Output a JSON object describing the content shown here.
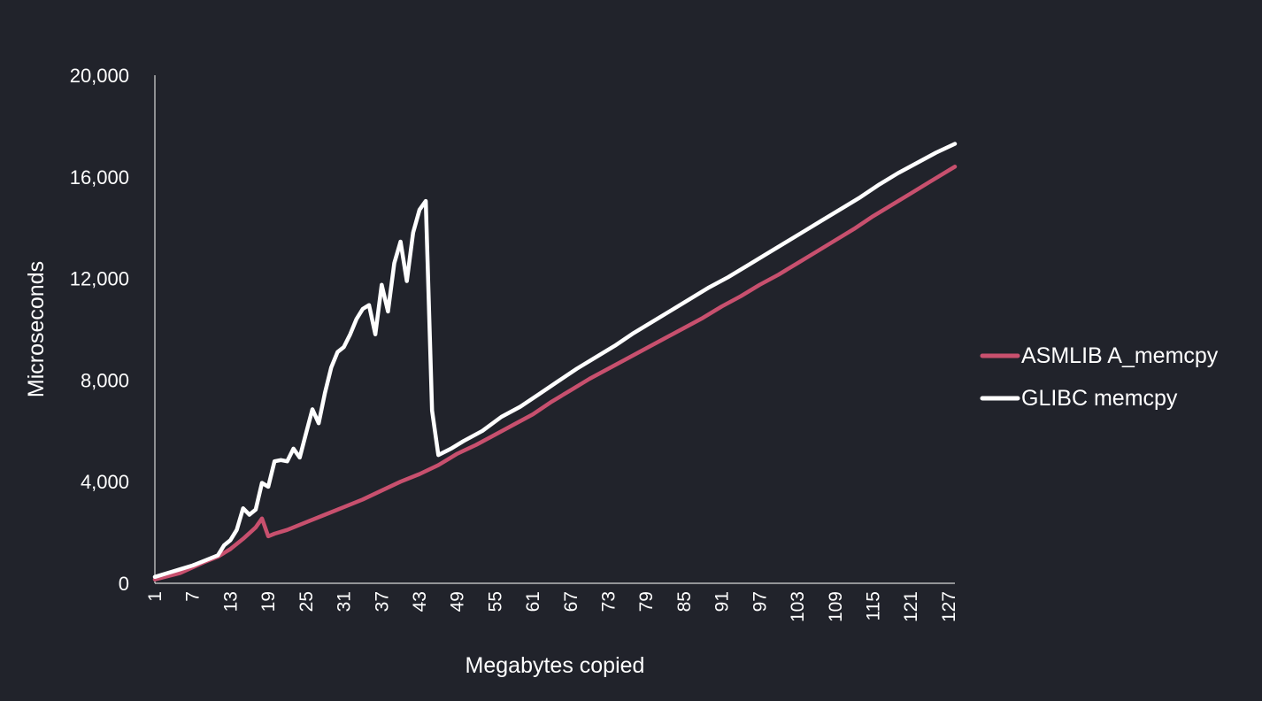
{
  "chart_data": {
    "type": "line",
    "xlabel": "Megabytes copied",
    "ylabel": "Microseconds",
    "xlim": [
      1,
      128
    ],
    "ylim": [
      0,
      20000
    ],
    "y_ticks": [
      0,
      4000,
      8000,
      12000,
      16000,
      20000
    ],
    "y_tick_labels": [
      "0",
      "4,000",
      "8,000",
      "12,000",
      "16,000",
      "20,000"
    ],
    "x_tick_values": [
      1,
      7,
      13,
      19,
      25,
      31,
      37,
      43,
      49,
      55,
      61,
      67,
      73,
      79,
      85,
      91,
      97,
      103,
      109,
      115,
      121,
      127
    ],
    "x_tick_labels": [
      "1",
      "7",
      "13",
      "19",
      "25",
      "31",
      "37",
      "43",
      "49",
      "55",
      "61",
      "67",
      "73",
      "79",
      "85",
      "91",
      "97",
      "103",
      "109",
      "115",
      "121",
      "127"
    ],
    "grid": false,
    "legend_position": "right",
    "background": "#21232b",
    "series": [
      {
        "name": "ASMLIB A_memcpy",
        "color": "#c8506e",
        "points": [
          [
            1,
            150
          ],
          [
            5,
            400
          ],
          [
            9,
            850
          ],
          [
            11,
            1050
          ],
          [
            13,
            1350
          ],
          [
            15,
            1750
          ],
          [
            17,
            2200
          ],
          [
            18,
            2550
          ],
          [
            19,
            1850
          ],
          [
            20,
            1950
          ],
          [
            22,
            2100
          ],
          [
            25,
            2400
          ],
          [
            28,
            2700
          ],
          [
            31,
            3000
          ],
          [
            34,
            3300
          ],
          [
            37,
            3650
          ],
          [
            40,
            4000
          ],
          [
            43,
            4300
          ],
          [
            46,
            4650
          ],
          [
            49,
            5100
          ],
          [
            52,
            5450
          ],
          [
            55,
            5850
          ],
          [
            58,
            6250
          ],
          [
            61,
            6650
          ],
          [
            64,
            7150
          ],
          [
            67,
            7600
          ],
          [
            70,
            8050
          ],
          [
            73,
            8450
          ],
          [
            76,
            8850
          ],
          [
            79,
            9250
          ],
          [
            82,
            9650
          ],
          [
            85,
            10050
          ],
          [
            88,
            10450
          ],
          [
            91,
            10900
          ],
          [
            94,
            11300
          ],
          [
            97,
            11750
          ],
          [
            100,
            12150
          ],
          [
            103,
            12600
          ],
          [
            106,
            13050
          ],
          [
            109,
            13500
          ],
          [
            112,
            13950
          ],
          [
            115,
            14450
          ],
          [
            118,
            14900
          ],
          [
            121,
            15350
          ],
          [
            124,
            15800
          ],
          [
            127,
            16250
          ],
          [
            128,
            16400
          ]
        ]
      },
      {
        "name": "GLIBC memcpy",
        "color": "#ffffff",
        "points": [
          [
            1,
            250
          ],
          [
            3,
            400
          ],
          [
            5,
            550
          ],
          [
            7,
            700
          ],
          [
            9,
            900
          ],
          [
            11,
            1100
          ],
          [
            12,
            1500
          ],
          [
            13,
            1700
          ],
          [
            14,
            2100
          ],
          [
            15,
            2950
          ],
          [
            16,
            2700
          ],
          [
            17,
            2900
          ],
          [
            18,
            3950
          ],
          [
            19,
            3800
          ],
          [
            20,
            4800
          ],
          [
            21,
            4850
          ],
          [
            22,
            4800
          ],
          [
            23,
            5300
          ],
          [
            24,
            4950
          ],
          [
            25,
            5900
          ],
          [
            26,
            6850
          ],
          [
            27,
            6300
          ],
          [
            28,
            7500
          ],
          [
            29,
            8500
          ],
          [
            30,
            9100
          ],
          [
            31,
            9300
          ],
          [
            32,
            9800
          ],
          [
            33,
            10400
          ],
          [
            34,
            10800
          ],
          [
            35,
            10950
          ],
          [
            36,
            9800
          ],
          [
            37,
            11750
          ],
          [
            38,
            10700
          ],
          [
            39,
            12600
          ],
          [
            40,
            13450
          ],
          [
            41,
            11900
          ],
          [
            42,
            13800
          ],
          [
            43,
            14700
          ],
          [
            44,
            15050
          ],
          [
            45,
            6800
          ],
          [
            46,
            5050
          ],
          [
            48,
            5300
          ],
          [
            50,
            5600
          ],
          [
            53,
            6000
          ],
          [
            56,
            6550
          ],
          [
            59,
            6950
          ],
          [
            62,
            7450
          ],
          [
            65,
            7950
          ],
          [
            68,
            8450
          ],
          [
            71,
            8900
          ],
          [
            74,
            9350
          ],
          [
            77,
            9850
          ],
          [
            80,
            10300
          ],
          [
            83,
            10750
          ],
          [
            86,
            11200
          ],
          [
            89,
            11650
          ],
          [
            92,
            12050
          ],
          [
            95,
            12500
          ],
          [
            98,
            12950
          ],
          [
            101,
            13400
          ],
          [
            104,
            13850
          ],
          [
            107,
            14300
          ],
          [
            110,
            14750
          ],
          [
            113,
            15200
          ],
          [
            116,
            15700
          ],
          [
            119,
            16150
          ],
          [
            122,
            16550
          ],
          [
            125,
            16950
          ],
          [
            128,
            17300
          ]
        ]
      }
    ]
  }
}
